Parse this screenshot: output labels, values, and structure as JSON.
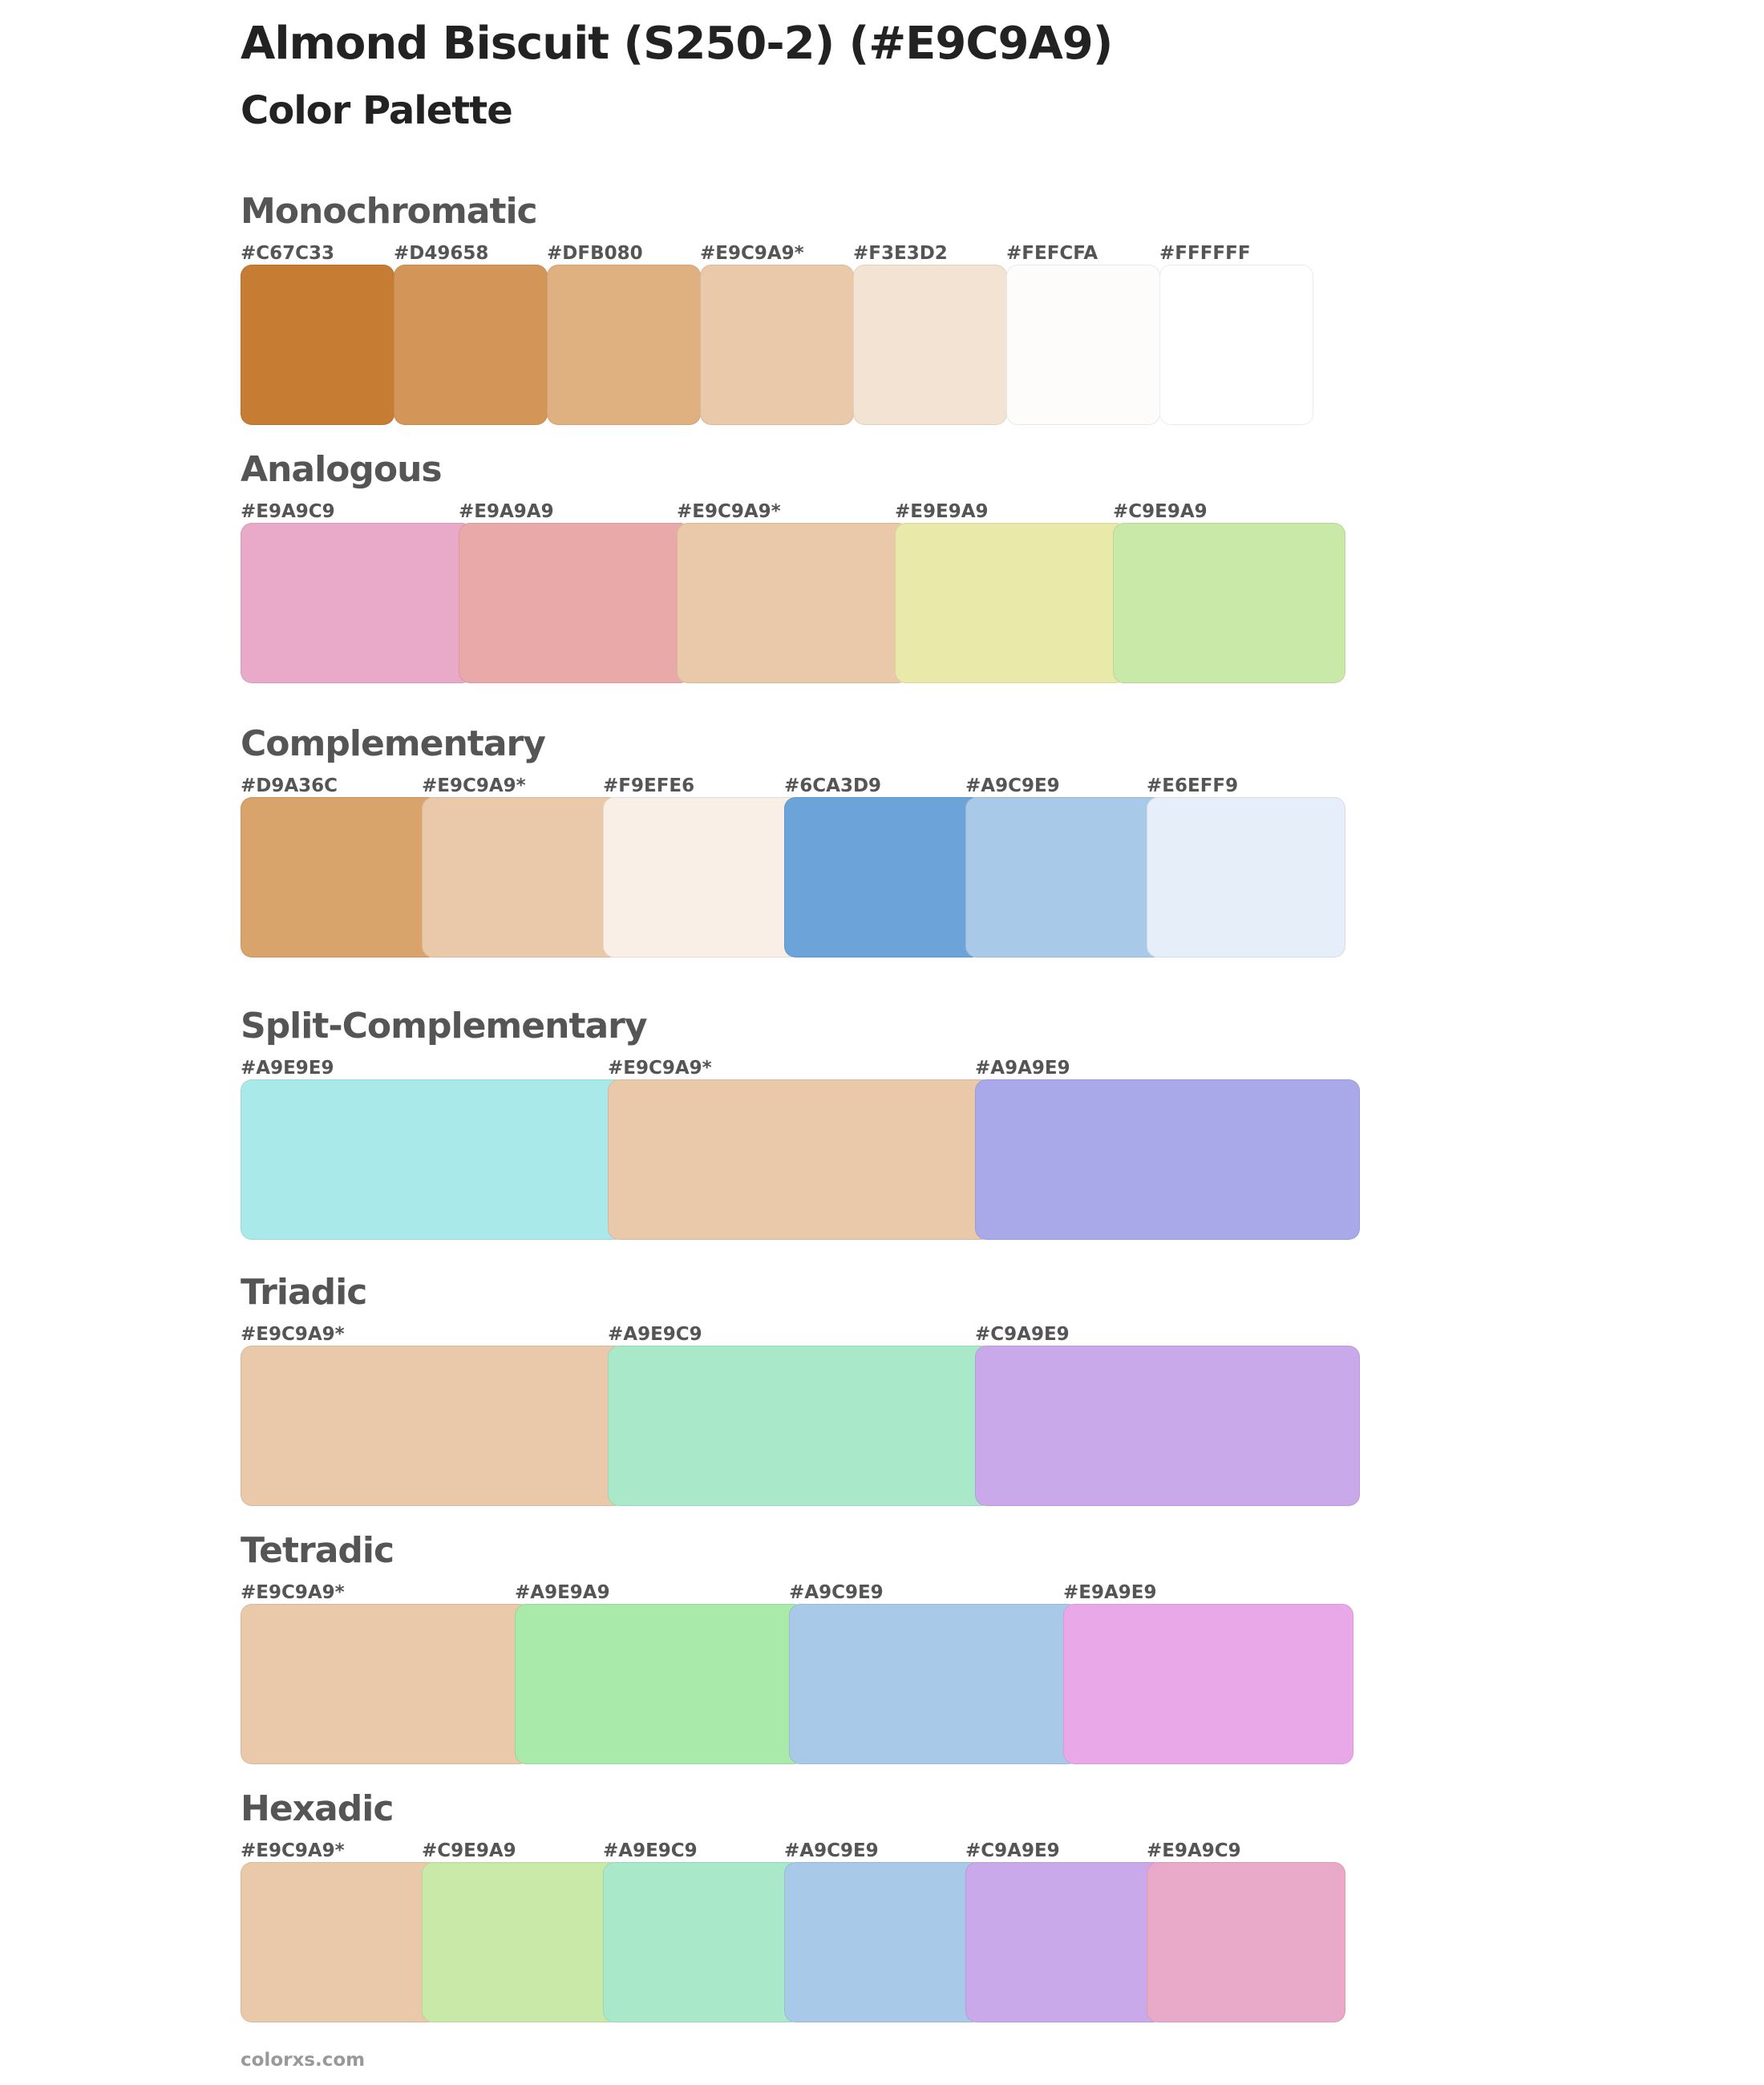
{
  "header": {
    "title": "Almond Biscuit (S250-2) (#E9C9A9)",
    "subtitle": "Color Palette"
  },
  "sections": [
    {
      "id": "monochromatic",
      "title": "Monochromatic",
      "swatches": [
        {
          "label": "#C67C33",
          "color": "#C67C33"
        },
        {
          "label": "#D49658",
          "color": "#D49658"
        },
        {
          "label": "#DFB080",
          "color": "#DFB080"
        },
        {
          "label": "#E9C9A9*",
          "color": "#E9C9A9"
        },
        {
          "label": "#F3E3D2",
          "color": "#F3E3D2"
        },
        {
          "label": "#FEFCFA",
          "color": "#FEFCFA"
        },
        {
          "label": "#FFFFFF",
          "color": "#FFFFFF"
        }
      ]
    },
    {
      "id": "analogous",
      "title": "Analogous",
      "swatches": [
        {
          "label": "#E9A9C9",
          "color": "#E9A9C9"
        },
        {
          "label": "#E9A9A9",
          "color": "#E9A9A9"
        },
        {
          "label": "#E9C9A9*",
          "color": "#E9C9A9"
        },
        {
          "label": "#E9E9A9",
          "color": "#E9E9A9"
        },
        {
          "label": "#C9E9A9",
          "color": "#C9E9A9"
        }
      ]
    },
    {
      "id": "complementary",
      "title": "Complementary",
      "swatches": [
        {
          "label": "#D9A36C",
          "color": "#D9A36C"
        },
        {
          "label": "#E9C9A9*",
          "color": "#E9C9A9"
        },
        {
          "label": "#F9EFE6",
          "color": "#F9EFE6"
        },
        {
          "label": "#6CA3D9",
          "color": "#6CA3D9"
        },
        {
          "label": "#A9C9E9",
          "color": "#A9C9E9"
        },
        {
          "label": "#E6EFF9",
          "color": "#E6EFF9"
        }
      ]
    },
    {
      "id": "split-complementary",
      "title": "Split-Complementary",
      "swatches": [
        {
          "label": "#A9E9E9",
          "color": "#A9E9E9"
        },
        {
          "label": "#E9C9A9*",
          "color": "#E9C9A9"
        },
        {
          "label": "#A9A9E9",
          "color": "#A9A9E9"
        }
      ]
    },
    {
      "id": "triadic",
      "title": "Triadic",
      "swatches": [
        {
          "label": "#E9C9A9*",
          "color": "#E9C9A9"
        },
        {
          "label": "#A9E9C9",
          "color": "#A9E9C9"
        },
        {
          "label": "#C9A9E9",
          "color": "#C9A9E9"
        }
      ]
    },
    {
      "id": "tetradic",
      "title": "Tetradic",
      "swatches": [
        {
          "label": "#E9C9A9*",
          "color": "#E9C9A9"
        },
        {
          "label": "#A9E9A9",
          "color": "#A9E9A9"
        },
        {
          "label": "#A9C9E9",
          "color": "#A9C9E9"
        },
        {
          "label": "#E9A9E9",
          "color": "#E9A9E9"
        }
      ]
    },
    {
      "id": "hexadic",
      "title": "Hexadic",
      "swatches": [
        {
          "label": "#E9C9A9*",
          "color": "#E9C9A9"
        },
        {
          "label": "#C9E9A9",
          "color": "#C9E9A9"
        },
        {
          "label": "#A9E9C9",
          "color": "#A9E9C9"
        },
        {
          "label": "#A9C9E9",
          "color": "#A9C9E9"
        },
        {
          "label": "#C9A9E9",
          "color": "#C9A9E9"
        },
        {
          "label": "#E9A9C9",
          "color": "#E9A9C9"
        }
      ]
    }
  ],
  "footer": {
    "text": "colorxs.com"
  }
}
